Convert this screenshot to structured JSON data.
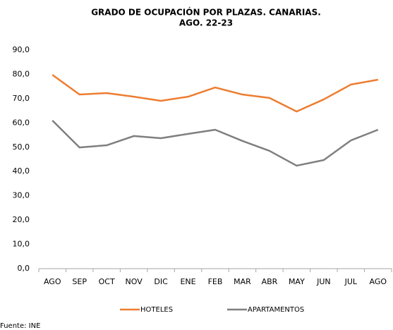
{
  "chart_data": {
    "type": "line",
    "title": [
      "GRADO DE OCUPACIÓN POR PLAZAS. CANARIAS.",
      "AGO. 22-23"
    ],
    "source": "Fuente: INE",
    "categories": [
      "AGO",
      "SEP",
      "OCT",
      "NOV",
      "DIC",
      "ENE",
      "FEB",
      "MAR",
      "ABR",
      "MAY",
      "JUN",
      "JUL",
      "AGO"
    ],
    "series": [
      {
        "name": "HOTELES",
        "color": "#ed7d31",
        "values": [
          79.8,
          71.7,
          72.3,
          70.8,
          69.1,
          70.8,
          74.6,
          71.7,
          70.3,
          64.7,
          69.7,
          75.8,
          77.8
        ]
      },
      {
        "name": "APARTAMENTOS",
        "color": "#7f7f7f",
        "values": [
          61.0,
          49.9,
          50.8,
          54.6,
          53.7,
          55.5,
          57.2,
          52.6,
          48.5,
          42.4,
          44.7,
          52.8,
          57.2
        ]
      }
    ],
    "ylim": [
      0,
      90
    ],
    "yticks": [
      {
        "value": 0,
        "label": "0,0"
      },
      {
        "value": 10,
        "label": "10,0"
      },
      {
        "value": 20,
        "label": "20,0"
      },
      {
        "value": 30,
        "label": "30,0"
      },
      {
        "value": 40,
        "label": "40,0"
      },
      {
        "value": 50,
        "label": "50,0"
      },
      {
        "value": 60,
        "label": "60,0"
      },
      {
        "value": 70,
        "label": "70,0"
      },
      {
        "value": 80,
        "label": "80,0"
      },
      {
        "value": 90,
        "label": "90,0"
      }
    ],
    "grid": false,
    "legend": "bottom"
  }
}
